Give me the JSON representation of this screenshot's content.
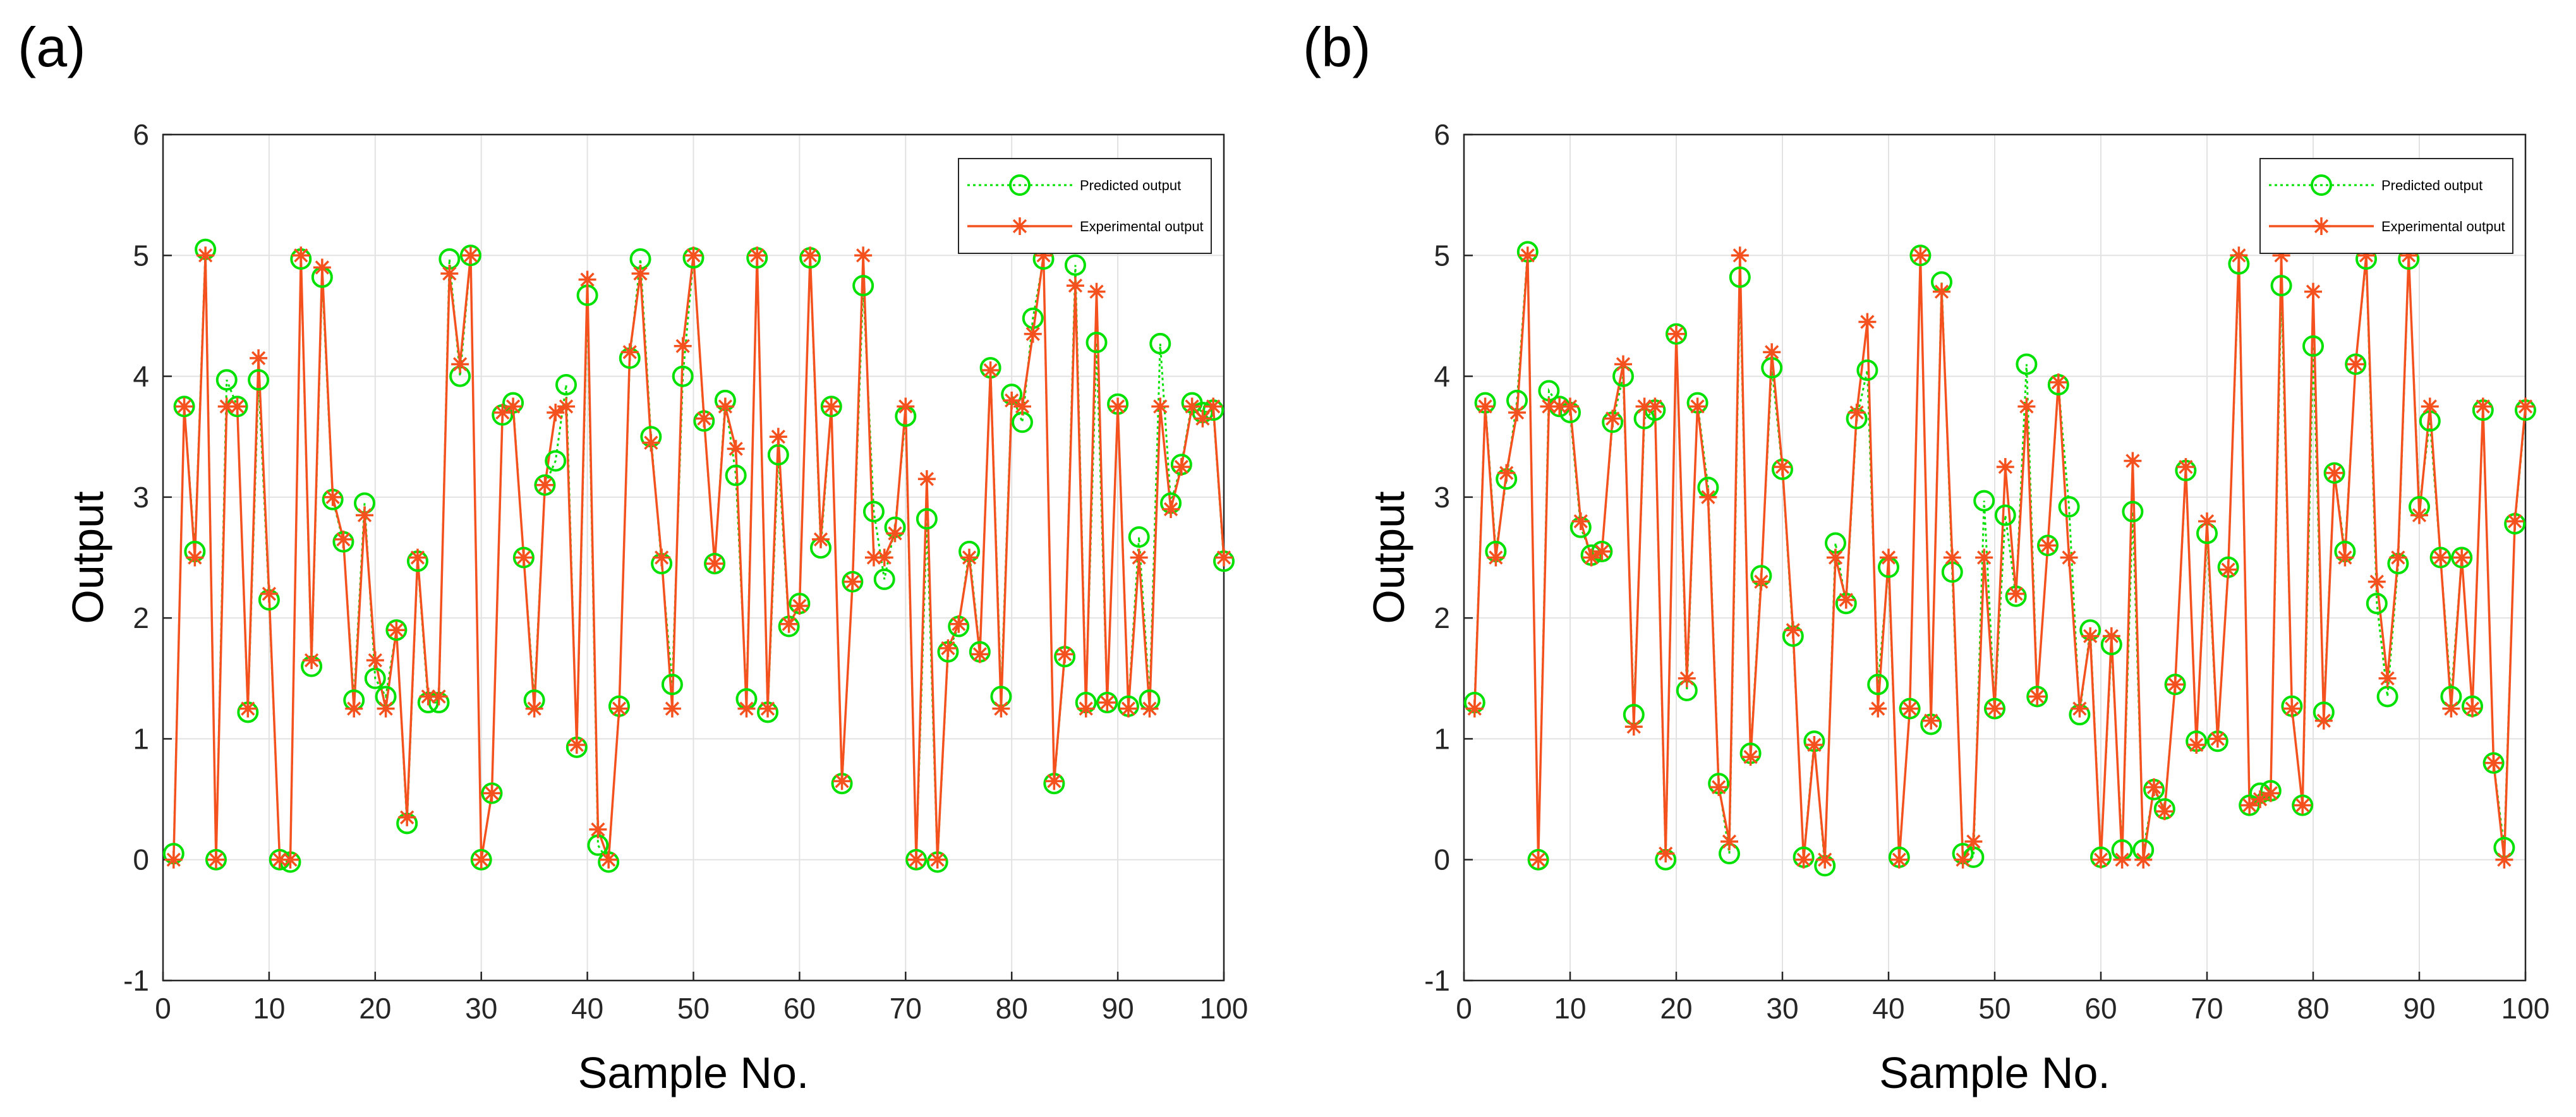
{
  "chart_data": [
    {
      "type": "line",
      "panel_label": "(a)",
      "xlabel": "Sample No.",
      "ylabel": "Output",
      "xlim": [
        0,
        100
      ],
      "ylim": [
        -1,
        6
      ],
      "xticks": [
        0,
        10,
        20,
        30,
        40,
        50,
        60,
        70,
        80,
        90,
        100
      ],
      "yticks": [
        -1,
        0,
        1,
        2,
        3,
        4,
        5,
        6
      ],
      "grid": true,
      "legend_position": "top-right",
      "series": [
        {
          "name": "Predicted output",
          "color": "#00e100",
          "style": "dotted",
          "marker": "circle",
          "x": [
            1,
            2,
            3,
            4,
            5,
            6,
            7,
            8,
            9,
            10,
            11,
            12,
            13,
            14,
            15,
            16,
            17,
            18,
            19,
            20,
            21,
            22,
            23,
            24,
            25,
            26,
            27,
            28,
            29,
            30,
            31,
            32,
            33,
            34,
            35,
            36,
            37,
            38,
            39,
            40,
            41,
            42,
            43,
            44,
            45,
            46,
            47,
            48,
            49,
            50,
            51,
            52,
            53,
            54,
            55,
            56,
            57,
            58,
            59,
            60,
            61,
            62,
            63,
            64,
            65,
            66,
            67,
            68,
            69,
            70,
            71,
            72,
            73,
            74,
            75,
            76,
            77,
            78,
            79,
            80,
            81,
            82,
            83,
            84,
            85,
            86,
            87,
            88,
            89,
            90,
            91,
            92,
            93,
            94,
            95,
            96,
            97,
            98,
            99,
            100
          ],
          "values": [
            0.05,
            3.75,
            2.55,
            5.05,
            0.0,
            3.97,
            3.75,
            1.22,
            3.97,
            2.15,
            0.0,
            -0.02,
            4.97,
            1.6,
            4.82,
            2.98,
            2.63,
            1.32,
            2.95,
            1.5,
            1.35,
            1.9,
            0.3,
            2.47,
            1.3,
            1.3,
            4.97,
            4.0,
            5.0,
            0.0,
            0.55,
            3.68,
            3.78,
            2.5,
            1.32,
            3.1,
            3.3,
            3.93,
            0.93,
            4.67,
            0.12,
            -0.02,
            1.27,
            4.15,
            4.97,
            3.5,
            2.45,
            1.45,
            4.0,
            4.98,
            3.63,
            2.45,
            3.8,
            3.18,
            1.33,
            4.98,
            1.22,
            3.35,
            1.93,
            2.12,
            4.98,
            2.58,
            3.75,
            0.63,
            2.3,
            4.75,
            2.88,
            2.32,
            2.75,
            3.67,
            0.0,
            2.82,
            -0.02,
            1.72,
            1.93,
            2.55,
            1.72,
            4.07,
            1.35,
            3.85,
            3.62,
            4.48,
            4.97,
            0.63,
            1.68,
            4.92,
            1.3,
            4.28,
            1.3,
            3.77,
            1.27,
            2.67,
            1.32,
            4.27,
            2.95,
            3.27,
            3.78,
            3.7,
            3.72,
            2.47
          ]
        },
        {
          "name": "Experimental output",
          "color": "#f4511e",
          "style": "solid",
          "marker": "asterisk",
          "x": [
            1,
            2,
            3,
            4,
            5,
            6,
            7,
            8,
            9,
            10,
            11,
            12,
            13,
            14,
            15,
            16,
            17,
            18,
            19,
            20,
            21,
            22,
            23,
            24,
            25,
            26,
            27,
            28,
            29,
            30,
            31,
            32,
            33,
            34,
            35,
            36,
            37,
            38,
            39,
            40,
            41,
            42,
            43,
            44,
            45,
            46,
            47,
            48,
            49,
            50,
            51,
            52,
            53,
            54,
            55,
            56,
            57,
            58,
            59,
            60,
            61,
            62,
            63,
            64,
            65,
            66,
            67,
            68,
            69,
            70,
            71,
            72,
            73,
            74,
            75,
            76,
            77,
            78,
            79,
            80,
            81,
            82,
            83,
            84,
            85,
            86,
            87,
            88,
            89,
            90,
            91,
            92,
            93,
            94,
            95,
            96,
            97,
            98,
            99,
            100
          ],
          "values": [
            0.0,
            3.75,
            2.5,
            5.0,
            0.0,
            3.75,
            3.75,
            1.25,
            4.15,
            2.2,
            0.0,
            0.0,
            5.0,
            1.65,
            4.9,
            3.0,
            2.65,
            1.25,
            2.85,
            1.65,
            1.25,
            1.9,
            0.35,
            2.5,
            1.35,
            1.35,
            4.85,
            4.1,
            5.0,
            0.0,
            0.55,
            3.7,
            3.75,
            2.5,
            1.25,
            3.1,
            3.7,
            3.75,
            0.95,
            4.8,
            0.25,
            0.0,
            1.25,
            4.2,
            4.85,
            3.45,
            2.5,
            1.25,
            4.25,
            5.0,
            3.65,
            2.45,
            3.75,
            3.4,
            1.25,
            5.0,
            1.25,
            3.5,
            1.95,
            2.1,
            5.0,
            2.65,
            3.75,
            0.65,
            2.3,
            5.0,
            2.5,
            2.5,
            2.7,
            3.75,
            0.0,
            3.15,
            0.0,
            1.75,
            1.95,
            2.5,
            1.7,
            4.05,
            1.25,
            3.8,
            3.75,
            4.35,
            5.0,
            0.65,
            1.7,
            4.75,
            1.25,
            4.7,
            1.3,
            3.75,
            1.25,
            2.5,
            1.25,
            3.75,
            2.9,
            3.25,
            3.75,
            3.65,
            3.75,
            2.5
          ]
        }
      ]
    },
    {
      "type": "line",
      "panel_label": "(b)",
      "xlabel": "Sample No.",
      "ylabel": "Output",
      "xlim": [
        0,
        100
      ],
      "ylim": [
        -1,
        6
      ],
      "xticks": [
        0,
        10,
        20,
        30,
        40,
        50,
        60,
        70,
        80,
        90,
        100
      ],
      "yticks": [
        -1,
        0,
        1,
        2,
        3,
        4,
        5,
        6
      ],
      "grid": true,
      "legend_position": "top-right",
      "series": [
        {
          "name": "Predicted output",
          "color": "#00e100",
          "style": "dotted",
          "marker": "circle",
          "x": [
            1,
            2,
            3,
            4,
            5,
            6,
            7,
            8,
            9,
            10,
            11,
            12,
            13,
            14,
            15,
            16,
            17,
            18,
            19,
            20,
            21,
            22,
            23,
            24,
            25,
            26,
            27,
            28,
            29,
            30,
            31,
            32,
            33,
            34,
            35,
            36,
            37,
            38,
            39,
            40,
            41,
            42,
            43,
            44,
            45,
            46,
            47,
            48,
            49,
            50,
            51,
            52,
            53,
            54,
            55,
            56,
            57,
            58,
            59,
            60,
            61,
            62,
            63,
            64,
            65,
            66,
            67,
            68,
            69,
            70,
            71,
            72,
            73,
            74,
            75,
            76,
            77,
            78,
            79,
            80,
            81,
            82,
            83,
            84,
            85,
            86,
            87,
            88,
            89,
            90,
            91,
            92,
            93,
            94,
            95,
            96,
            97,
            98,
            99,
            100
          ],
          "values": [
            1.3,
            3.78,
            2.55,
            3.15,
            3.8,
            5.03,
            0.0,
            3.88,
            3.75,
            3.7,
            2.75,
            2.52,
            2.55,
            3.62,
            4.0,
            1.2,
            3.65,
            3.72,
            0.0,
            4.35,
            1.4,
            3.78,
            3.08,
            0.63,
            0.05,
            4.82,
            0.88,
            2.35,
            4.07,
            3.23,
            1.85,
            0.02,
            0.98,
            -0.05,
            2.62,
            2.12,
            3.65,
            4.05,
            1.45,
            2.42,
            0.02,
            1.25,
            5.0,
            1.12,
            4.78,
            2.38,
            0.05,
            0.02,
            2.97,
            1.25,
            2.85,
            2.18,
            4.1,
            1.35,
            2.6,
            3.93,
            2.92,
            1.2,
            1.9,
            0.02,
            1.78,
            0.08,
            2.88,
            0.08,
            0.58,
            0.42,
            1.45,
            3.22,
            0.98,
            2.7,
            0.98,
            2.42,
            4.93,
            0.45,
            0.55,
            0.57,
            4.75,
            1.27,
            0.45,
            4.25,
            1.22,
            3.2,
            2.55,
            4.1,
            4.97,
            2.12,
            1.35,
            2.45,
            4.97,
            2.92,
            3.63,
            2.5,
            1.35,
            2.5,
            1.27,
            3.72,
            0.8,
            0.1,
            2.78,
            3.72
          ]
        },
        {
          "name": "Experimental output",
          "color": "#f4511e",
          "style": "solid",
          "marker": "asterisk",
          "x": [
            1,
            2,
            3,
            4,
            5,
            6,
            7,
            8,
            9,
            10,
            11,
            12,
            13,
            14,
            15,
            16,
            17,
            18,
            19,
            20,
            21,
            22,
            23,
            24,
            25,
            26,
            27,
            28,
            29,
            30,
            31,
            32,
            33,
            34,
            35,
            36,
            37,
            38,
            39,
            40,
            41,
            42,
            43,
            44,
            45,
            46,
            47,
            48,
            49,
            50,
            51,
            52,
            53,
            54,
            55,
            56,
            57,
            58,
            59,
            60,
            61,
            62,
            63,
            64,
            65,
            66,
            67,
            68,
            69,
            70,
            71,
            72,
            73,
            74,
            75,
            76,
            77,
            78,
            79,
            80,
            81,
            82,
            83,
            84,
            85,
            86,
            87,
            88,
            89,
            90,
            91,
            92,
            93,
            94,
            95,
            96,
            97,
            98,
            99,
            100
          ],
          "values": [
            1.25,
            3.75,
            2.5,
            3.2,
            3.7,
            5.0,
            0.0,
            3.75,
            3.75,
            3.75,
            2.8,
            2.5,
            2.55,
            3.65,
            4.1,
            1.1,
            3.75,
            3.75,
            0.05,
            4.35,
            1.5,
            3.75,
            3.0,
            0.6,
            0.15,
            5.0,
            0.85,
            2.3,
            4.2,
            3.25,
            1.9,
            0.0,
            0.95,
            0.0,
            2.5,
            2.15,
            3.7,
            4.45,
            1.25,
            2.5,
            0.0,
            1.25,
            5.0,
            1.15,
            4.7,
            2.5,
            0.0,
            0.15,
            2.5,
            1.25,
            3.25,
            2.2,
            3.75,
            1.35,
            2.6,
            3.95,
            2.5,
            1.25,
            1.85,
            0.0,
            1.85,
            0.0,
            3.3,
            0.0,
            0.6,
            0.4,
            1.45,
            3.25,
            0.95,
            2.8,
            1.0,
            2.4,
            5.0,
            0.45,
            0.5,
            0.55,
            5.0,
            1.25,
            0.45,
            4.7,
            1.15,
            3.2,
            2.5,
            4.1,
            5.0,
            2.3,
            1.5,
            2.5,
            5.0,
            2.85,
            3.75,
            2.5,
            1.25,
            2.5,
            1.25,
            3.75,
            0.8,
            0.0,
            2.8,
            3.75
          ]
        }
      ]
    }
  ]
}
